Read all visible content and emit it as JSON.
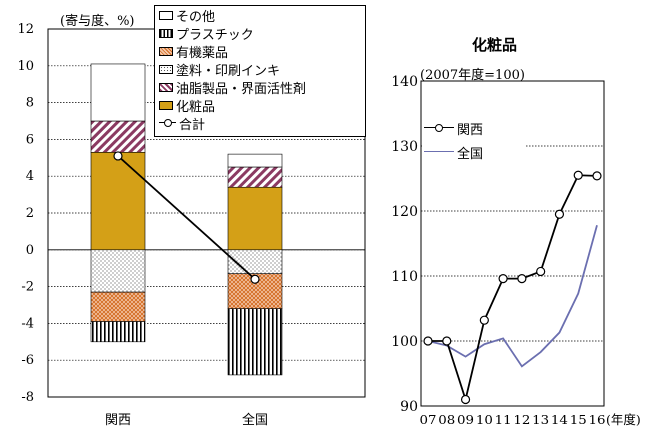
{
  "chart_data": [
    {
      "type": "bar",
      "stacked": true,
      "ylabel": "(寄与度、%)",
      "ylim": [
        -8,
        12
      ],
      "yticks": [
        -8,
        -6,
        -4,
        -2,
        0,
        2,
        4,
        6,
        8,
        10,
        12
      ],
      "categories": [
        "関西",
        "全国"
      ],
      "series": [
        {
          "name": "化粧品",
          "values": [
            5.3,
            3.4
          ],
          "color": "#d4a017",
          "pattern": "solid"
        },
        {
          "name": "油脂製品・界面活性剤",
          "values": [
            1.7,
            1.1
          ],
          "color": "#8b3a62",
          "pattern": "diagonal"
        },
        {
          "name": "その他",
          "values": [
            3.1,
            0.7
          ],
          "color": "#ffffff",
          "pattern": "none"
        },
        {
          "name": "塗料・印刷インキ",
          "values": [
            -2.3,
            -1.3
          ],
          "color": "#ffffff",
          "pattern": "dots"
        },
        {
          "name": "有機薬品",
          "values": [
            -1.6,
            -1.9
          ],
          "color": "#e9a070",
          "pattern": "cross"
        },
        {
          "name": "プラスチック",
          "values": [
            -1.1,
            -3.6
          ],
          "color": "#ffffff",
          "pattern": "vertical"
        }
      ],
      "total": {
        "name": "合計",
        "values": [
          5.1,
          -1.6
        ]
      },
      "legend_order": [
        "その他",
        "プラスチック",
        "有機薬品",
        "塗料・印刷インキ",
        "油脂製品・界面活性剤",
        "化粧品",
        "合計"
      ],
      "grid": "horizontal-dotted",
      "legend": "top-right-overlay"
    },
    {
      "type": "line",
      "title": "化粧品",
      "subtitle": "(2007年度=100)",
      "x": [
        "07",
        "08",
        "09",
        "10",
        "11",
        "12",
        "13",
        "14",
        "15",
        "16"
      ],
      "xlabel_suffix": "(年度)",
      "ylim": [
        90,
        140
      ],
      "yticks": [
        90,
        100,
        110,
        120,
        130,
        140
      ],
      "series": [
        {
          "name": "関西",
          "values": [
            100,
            100,
            91,
            103.2,
            109.6,
            109.6,
            110.7,
            119.5,
            125.5,
            125.4
          ],
          "color": "#000000",
          "marker": "circle"
        },
        {
          "name": "全国",
          "values": [
            100,
            99.3,
            97.6,
            99.5,
            100.4,
            96.1,
            98.3,
            101.3,
            107.3,
            117.8
          ],
          "color": "#6b6fb0",
          "marker": "none"
        }
      ],
      "grid": "horizontal-dotted",
      "legend": "top-left"
    }
  ]
}
